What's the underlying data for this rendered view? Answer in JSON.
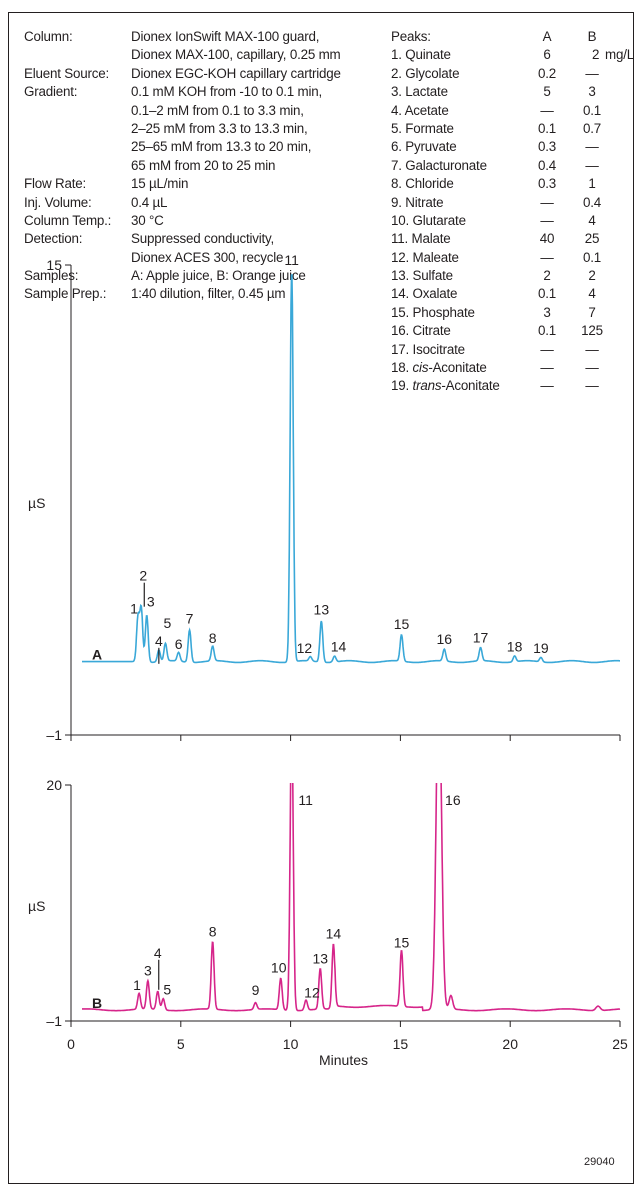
{
  "conditions": [
    {
      "label": "Column:",
      "value": "Dionex IonSwift MAX-100 guard,"
    },
    {
      "label": "",
      "value": "Dionex MAX-100, capillary, 0.25 mm"
    },
    {
      "label": "Eluent Source:",
      "value": "Dionex EGC-KOH capillary cartridge"
    },
    {
      "label": "Gradient:",
      "value": "0.1 mM KOH from -10 to 0.1 min,"
    },
    {
      "label": "",
      "value": "0.1–2 mM from 0.1 to 3.3 min,"
    },
    {
      "label": "",
      "value": "2–25 mM from 3.3 to 13.3 min,"
    },
    {
      "label": "",
      "value": "25–65 mM from 13.3 to 20 min,"
    },
    {
      "label": "",
      "value": "65 mM from 20 to 25 min"
    },
    {
      "label": "Flow Rate:",
      "value": "15 µL/min"
    },
    {
      "label": "Inj. Volume:",
      "value": "0.4 µL"
    },
    {
      "label": "Column Temp.:",
      "value": "30 °C"
    },
    {
      "label": "Detection:",
      "value": "Suppressed conductivity,"
    },
    {
      "label": "",
      "value": "Dionex ACES 300, recycle"
    },
    {
      "label": "Samples:",
      "value": "A: Apple juice, B: Orange juice"
    },
    {
      "label": "Sample Prep.:",
      "value": "1:40 dilution, filter, 0.45 µm"
    }
  ],
  "peaks_table": {
    "header": {
      "name": "Peaks:",
      "a": "A",
      "b": "B",
      "unit": "mg/L"
    },
    "rows": [
      {
        "num": "1.",
        "name": "Quinate",
        "italic": "",
        "a": "6",
        "b": "2"
      },
      {
        "num": "2.",
        "name": "Glycolate",
        "italic": "",
        "a": "0.2",
        "b": "—"
      },
      {
        "num": "3.",
        "name": "Lactate",
        "italic": "",
        "a": "5",
        "b": "3"
      },
      {
        "num": "4.",
        "name": "Acetate",
        "italic": "",
        "a": "—",
        "b": "0.1"
      },
      {
        "num": "5.",
        "name": "Formate",
        "italic": "",
        "a": "0.1",
        "b": "0.7"
      },
      {
        "num": "6.",
        "name": "Pyruvate",
        "italic": "",
        "a": "0.3",
        "b": "—"
      },
      {
        "num": "7.",
        "name": "Galacturonate",
        "italic": "",
        "a": "0.4",
        "b": "—"
      },
      {
        "num": "8.",
        "name": "Chloride",
        "italic": "",
        "a": "0.3",
        "b": "1"
      },
      {
        "num": "9.",
        "name": "Nitrate",
        "italic": "",
        "a": "—",
        "b": "0.4"
      },
      {
        "num": "10.",
        "name": "Glutarate",
        "italic": "",
        "a": "—",
        "b": "4"
      },
      {
        "num": "11.",
        "name": "Malate",
        "italic": "",
        "a": "40",
        "b": "25"
      },
      {
        "num": "12.",
        "name": "Maleate",
        "italic": "",
        "a": "—",
        "b": "0.1"
      },
      {
        "num": "13.",
        "name": "Sulfate",
        "italic": "",
        "a": "2",
        "b": "2"
      },
      {
        "num": "14.",
        "name": "Oxalate",
        "italic": "",
        "a": "0.1",
        "b": "4"
      },
      {
        "num": "15.",
        "name": "Phosphate",
        "italic": "",
        "a": "3",
        "b": "7"
      },
      {
        "num": "16.",
        "name": "Citrate",
        "italic": "",
        "a": "0.1",
        "b": "125"
      },
      {
        "num": "17.",
        "name": "Isocitrate",
        "italic": "",
        "a": "—",
        "b": "—"
      },
      {
        "num": "18.",
        "name": "-Aconitate",
        "italic": "cis",
        "a": "—",
        "b": "—"
      },
      {
        "num": "19.",
        "name": "-Aconitate",
        "italic": "trans",
        "a": "—",
        "b": "—"
      }
    ]
  },
  "figure_id": "29040",
  "colors": {
    "trace_a": "#3aa8d8",
    "trace_b": "#d6258a",
    "axis": "#231f20"
  },
  "chart_data": [
    {
      "type": "line",
      "panel_label": "A",
      "xlabel": "",
      "ylabel": "µS",
      "xlim": [
        0,
        25
      ],
      "ylim": [
        -1,
        15
      ],
      "ytick_labels": [
        "15",
        "–1"
      ],
      "baseline": 1.5,
      "peaks": [
        {
          "label": "1",
          "x": 3.05,
          "y": 3.0
        },
        {
          "label": "2",
          "x": 3.2,
          "y": 3.3
        },
        {
          "label": "3",
          "x": 3.45,
          "y": 3.1
        },
        {
          "label": "4",
          "x": 4.0,
          "y": 1.9
        },
        {
          "label": "5",
          "x": 4.3,
          "y": 2.1
        },
        {
          "label": "6",
          "x": 4.9,
          "y": 1.8
        },
        {
          "label": "7",
          "x": 5.4,
          "y": 2.6
        },
        {
          "label": "8",
          "x": 6.45,
          "y": 2.0
        },
        {
          "label": "11",
          "x": 10.05,
          "y": 14.8
        },
        {
          "label": "12",
          "x": 10.9,
          "y": 1.65
        },
        {
          "label": "13",
          "x": 11.4,
          "y": 2.9
        },
        {
          "label": "14",
          "x": 12.0,
          "y": 1.7
        },
        {
          "label": "15",
          "x": 15.05,
          "y": 2.4
        },
        {
          "label": "16",
          "x": 17.0,
          "y": 1.9
        },
        {
          "label": "17",
          "x": 18.65,
          "y": 1.95
        },
        {
          "label": "18",
          "x": 20.2,
          "y": 1.7
        },
        {
          "label": "19",
          "x": 21.4,
          "y": 1.65
        }
      ]
    },
    {
      "type": "line",
      "panel_label": "B",
      "xlabel": "Minutes",
      "ylabel": "µS",
      "xlim": [
        0,
        25
      ],
      "ylim": [
        -1,
        20
      ],
      "xtick_labels": [
        "0",
        "5",
        "10",
        "15",
        "20",
        "25"
      ],
      "ytick_labels": [
        "20",
        "–1"
      ],
      "baseline": 0,
      "peaks": [
        {
          "label": "1",
          "x": 3.1,
          "y": 1.4
        },
        {
          "label": "3",
          "x": 3.5,
          "y": 2.5
        },
        {
          "label": "4",
          "x": 3.95,
          "y": 1.6
        },
        {
          "label": "5",
          "x": 4.2,
          "y": 1.0
        },
        {
          "label": "8",
          "x": 6.45,
          "y": 6.0
        },
        {
          "label": "9",
          "x": 8.4,
          "y": 0.6
        },
        {
          "label": "10",
          "x": 9.55,
          "y": 2.8
        },
        {
          "label": "11",
          "x": 10.05,
          "y": 26.0
        },
        {
          "label": "12",
          "x": 10.7,
          "y": 0.9
        },
        {
          "label": "13",
          "x": 11.35,
          "y": 3.6
        },
        {
          "label": "14",
          "x": 11.95,
          "y": 5.8
        },
        {
          "label": "15",
          "x": 15.05,
          "y": 5.0
        },
        {
          "label": "16",
          "x": 16.75,
          "y": 30.0
        }
      ]
    }
  ]
}
